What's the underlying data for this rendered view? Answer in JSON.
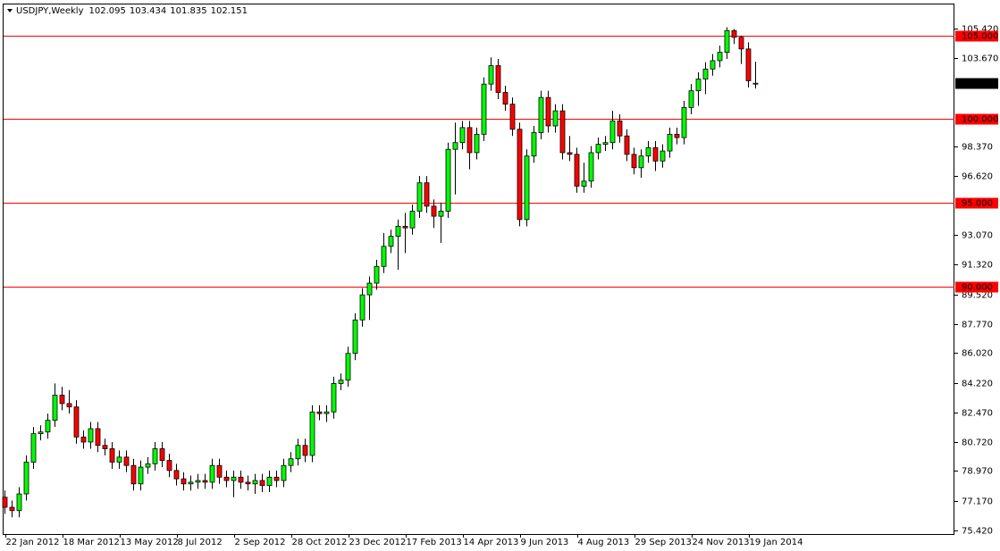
{
  "chart_data": {
    "type": "candlestick",
    "symbol": "USDJPY,Weekly",
    "categories": [
      "22 Jan 2012",
      null,
      null,
      null,
      null,
      null,
      null,
      null,
      "18 Mar 2012",
      null,
      null,
      null,
      null,
      null,
      null,
      null,
      "13 May 2012",
      null,
      null,
      null,
      null,
      null,
      null,
      null,
      "8 Jul 2012",
      null,
      null,
      null,
      null,
      null,
      null,
      null,
      "2 Sep 2012",
      null,
      null,
      null,
      null,
      null,
      null,
      null,
      "28 Oct 2012",
      null,
      null,
      null,
      null,
      null,
      null,
      null,
      "23 Dec 2012",
      null,
      null,
      null,
      null,
      null,
      null,
      null,
      "17 Feb 2013",
      null,
      null,
      null,
      null,
      null,
      null,
      null,
      "14 Apr 2013",
      null,
      null,
      null,
      null,
      null,
      null,
      null,
      "9 Jun 2013",
      null,
      null,
      null,
      null,
      null,
      null,
      null,
      "4 Aug 2013",
      null,
      null,
      null,
      null,
      null,
      null,
      null,
      "29 Sep 2013",
      null,
      null,
      null,
      null,
      null,
      null,
      null,
      "24 Nov 2013",
      null,
      null,
      null,
      null,
      null,
      null,
      null,
      "19 Jan 2014",
      null
    ],
    "open": [
      77.4,
      76.8,
      76.6,
      77.6,
      79.5,
      81.2,
      81.3,
      82.0,
      83.5,
      83.0,
      82.8,
      81.0,
      80.7,
      81.5,
      80.5,
      80.3,
      79.5,
      79.8,
      79.3,
      78.2,
      79.2,
      79.4,
      80.3,
      79.6,
      79.0,
      78.5,
      78.2,
      78.3,
      78.4,
      78.3,
      79.3,
      78.6,
      78.4,
      78.6,
      78.3,
      78.2,
      78.4,
      78.1,
      78.6,
      78.4,
      79.3,
      79.7,
      80.5,
      79.9,
      82.5,
      82.4,
      82.5,
      84.2,
      84.4,
      86.0,
      88.0,
      89.5,
      90.2,
      91.2,
      92.4,
      93.0,
      93.6,
      93.5,
      94.5,
      96.2,
      94.8,
      94.2,
      94.5,
      98.2,
      98.6,
      99.5,
      98.0,
      99.1,
      102.1,
      103.2,
      101.6,
      100.9,
      99.4,
      94.0,
      97.8,
      99.2,
      101.3,
      99.6,
      100.5,
      98.0,
      97.9,
      96.0,
      96.3,
      98.0,
      98.5,
      98.6,
      99.9,
      99.0,
      97.9,
      97.1,
      97.8,
      98.3,
      97.5,
      98.1,
      99.1,
      98.9,
      100.7,
      101.7,
      102.4,
      103.0,
      103.5,
      104.0,
      105.3,
      104.9,
      104.2,
      102.095
    ],
    "high": [
      77.8,
      77.2,
      78.0,
      79.9,
      81.6,
      81.7,
      82.4,
      84.2,
      84.0,
      83.8,
      83.2,
      81.4,
      81.9,
      81.9,
      80.9,
      80.7,
      80.2,
      80.2,
      79.7,
      79.6,
      79.8,
      80.7,
      80.7,
      80.0,
      79.4,
      78.9,
      78.7,
      78.8,
      78.8,
      79.7,
      79.7,
      79.0,
      79.0,
      79.0,
      78.7,
      78.8,
      78.8,
      79.0,
      79.0,
      79.7,
      80.1,
      80.9,
      80.9,
      82.9,
      82.9,
      82.9,
      84.6,
      84.8,
      86.4,
      88.4,
      89.9,
      90.6,
      91.6,
      93.2,
      93.4,
      94.0,
      94.4,
      94.9,
      96.6,
      96.6,
      95.2,
      95.0,
      98.6,
      99.8,
      99.9,
      99.9,
      99.5,
      102.5,
      103.7,
      103.6,
      102.0,
      101.3,
      99.8,
      98.2,
      99.6,
      101.7,
      101.7,
      100.9,
      100.9,
      99.0,
      98.3,
      97.4,
      98.4,
      98.9,
      99.0,
      100.5,
      100.3,
      99.4,
      98.3,
      98.2,
      98.7,
      98.7,
      98.5,
      99.5,
      99.5,
      101.1,
      102.1,
      102.8,
      103.4,
      103.9,
      104.4,
      105.5,
      105.4,
      105.0,
      104.6,
      103.434
    ],
    "low": [
      76.4,
      76.2,
      76.2,
      77.2,
      79.1,
      80.8,
      80.9,
      81.6,
      82.6,
      82.4,
      80.6,
      80.3,
      80.3,
      80.1,
      79.9,
      79.1,
      79.1,
      78.9,
      77.8,
      77.8,
      78.8,
      79.0,
      79.2,
      78.6,
      78.1,
      77.8,
      77.8,
      77.9,
      77.9,
      77.9,
      78.2,
      78.0,
      77.4,
      77.9,
      77.8,
      77.6,
      77.7,
      77.7,
      78.0,
      78.0,
      78.9,
      79.3,
      79.5,
      79.5,
      82.0,
      81.9,
      82.1,
      83.8,
      84.0,
      85.6,
      87.6,
      88.0,
      89.8,
      90.8,
      92.0,
      91.0,
      92.0,
      93.1,
      94.1,
      94.4,
      93.5,
      92.6,
      94.1,
      95.5,
      98.2,
      97.0,
      97.6,
      98.7,
      101.7,
      101.2,
      100.5,
      99.0,
      93.6,
      93.6,
      97.4,
      98.8,
      99.2,
      99.2,
      97.6,
      97.5,
      95.6,
      95.6,
      95.9,
      97.6,
      98.1,
      98.2,
      98.6,
      97.5,
      96.7,
      96.5,
      97.4,
      96.9,
      97.1,
      97.7,
      98.5,
      98.5,
      100.3,
      100.8,
      101.5,
      102.6,
      103.1,
      103.6,
      104.5,
      103.3,
      101.9,
      101.835
    ],
    "close": [
      76.8,
      76.6,
      77.6,
      79.5,
      81.2,
      81.3,
      82.0,
      83.5,
      83.0,
      82.8,
      81.0,
      80.7,
      81.5,
      80.5,
      80.3,
      79.5,
      79.8,
      79.3,
      78.2,
      79.2,
      79.4,
      80.3,
      79.6,
      79.0,
      78.5,
      78.2,
      78.3,
      78.4,
      78.3,
      79.3,
      78.6,
      78.4,
      78.6,
      78.3,
      78.2,
      78.4,
      78.1,
      78.6,
      78.4,
      79.3,
      79.7,
      80.5,
      79.9,
      82.5,
      82.4,
      82.5,
      84.2,
      84.4,
      86.0,
      88.0,
      89.5,
      90.2,
      91.2,
      92.4,
      93.0,
      93.6,
      93.5,
      94.5,
      96.2,
      94.8,
      94.2,
      94.5,
      98.2,
      98.6,
      99.5,
      98.0,
      99.1,
      102.1,
      103.2,
      101.6,
      100.9,
      99.4,
      94.0,
      97.8,
      99.2,
      101.3,
      99.6,
      100.5,
      98.0,
      97.9,
      96.0,
      96.3,
      98.0,
      98.5,
      98.6,
      99.9,
      99.0,
      97.9,
      97.1,
      97.8,
      98.3,
      97.5,
      98.1,
      99.1,
      98.9,
      100.7,
      101.7,
      102.4,
      103.0,
      103.5,
      104.0,
      105.3,
      104.9,
      104.2,
      102.3,
      102.151
    ],
    "bull_color": "#00ff00",
    "bear_color": "#ff0000",
    "ylim": [
      75.2,
      106.86
    ],
    "yticks": [
      {
        "value": 105.42,
        "label": "105.420"
      },
      {
        "value": 103.67,
        "label": "103.670"
      },
      {
        "value": 98.37,
        "label": "98.370"
      },
      {
        "value": 96.62,
        "label": "96.620"
      },
      {
        "value": 93.07,
        "label": "93.070"
      },
      {
        "value": 91.32,
        "label": "91.320"
      },
      {
        "value": 89.52,
        "label": "89.520"
      },
      {
        "value": 87.77,
        "label": "87.770"
      },
      {
        "value": 86.02,
        "label": "86.020"
      },
      {
        "value": 84.22,
        "label": "84.220"
      },
      {
        "value": 82.47,
        "label": "82.470"
      },
      {
        "value": 80.72,
        "label": "80.720"
      },
      {
        "value": 78.97,
        "label": "78.970"
      },
      {
        "value": 77.17,
        "label": "77.170"
      },
      {
        "value": 75.42,
        "label": "75.420"
      }
    ],
    "hlines": [
      {
        "value": 105,
        "label": "105.000"
      },
      {
        "value": 100,
        "label": "100.000"
      },
      {
        "value": 95,
        "label": "95.000"
      },
      {
        "value": 90,
        "label": "90.000"
      }
    ],
    "hline_color": "#ff0000"
  }
}
